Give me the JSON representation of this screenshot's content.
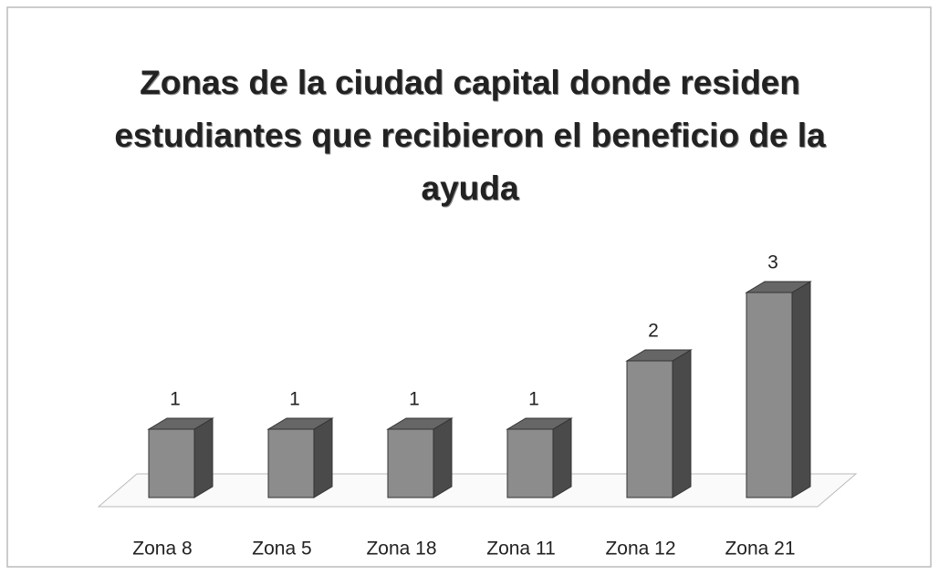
{
  "chart_data": {
    "type": "bar3d",
    "title": "Zonas de la ciudad capital donde residen estudiantes que recibieron el beneficio de la ayuda",
    "categories": [
      "Zona 8",
      "Zona 5",
      "Zona 18",
      "Zona 11",
      "Zona 12",
      "Zona 21"
    ],
    "values": [
      1,
      1,
      1,
      1,
      2,
      3
    ],
    "color": "#8c8c8c"
  }
}
